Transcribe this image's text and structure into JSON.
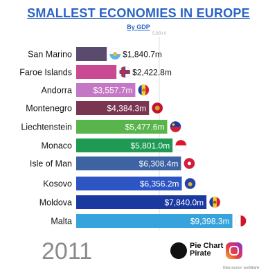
{
  "header": {
    "title": "SMALLEST ECONOMIES IN EUROPE",
    "subtitle": "By GDP"
  },
  "year": "2011",
  "brand": {
    "name": "Pie Chart Pirate",
    "icon": "pirate-icon",
    "social_icon": "instagram-icon"
  },
  "source": "Data source: worldbank",
  "chart_data": {
    "type": "bar",
    "orientation": "horizontal",
    "title": "SMALLEST ECONOMIES IN EUROPE",
    "subtitle": "By GDP",
    "xlim": [
      0,
      10000
    ],
    "ticks": [
      5000
    ],
    "tick_labels": [
      "5,000.0"
    ],
    "categories": [
      "San Marino",
      "Faroe Islands",
      "Andorra",
      "Montenegro",
      "Liechtenstein",
      "Monaco",
      "Isle of Man",
      "Kosovo",
      "Moldova",
      "Malta"
    ],
    "values": [
      1840.7,
      2422.8,
      3557.7,
      4384.3,
      5477.6,
      5801.0,
      6308.4,
      6356.2,
      7840.0,
      9398.3
    ],
    "labels": [
      "$1,840.7m",
      "$2,422.8m",
      "$3,557.7m",
      "$4,384.3m",
      "$5,477.6m",
      "$5,801.0m",
      "$6,308.4m",
      "$6,356.2m",
      "$7,840.0m",
      "$9,398.3m"
    ],
    "colors": [
      "#5a4a6e",
      "#c94a93",
      "#c477c4",
      "#7a3550",
      "#59b54b",
      "#1e9a55",
      "#3e63a3",
      "#2d56c4",
      "#1a3aa0",
      "#36a3dc"
    ],
    "flags": [
      "san-marino-flag",
      "faroe-islands-flag",
      "andorra-flag",
      "montenegro-flag",
      "liechtenstein-flag",
      "monaco-flag",
      "isle-of-man-flag",
      "kosovo-flag",
      "moldova-flag",
      "malta-flag"
    ]
  }
}
